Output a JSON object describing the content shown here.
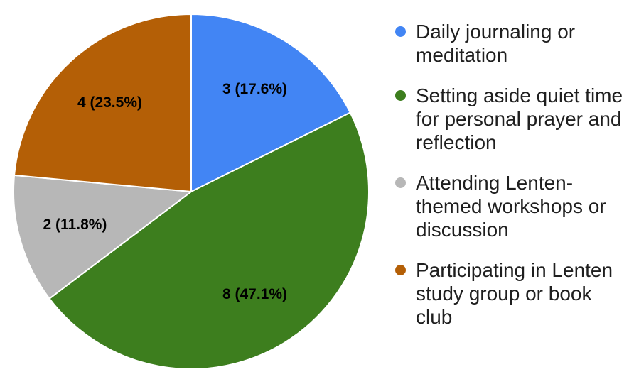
{
  "chart_data": {
    "type": "pie",
    "title": "",
    "total_responses": 17,
    "start_angle_deg_from_top": 0,
    "direction": "clockwise",
    "legend_position": "right",
    "grid": false,
    "background_color": "#ffffff",
    "slice_border_color": "#ffffff",
    "slices": [
      {
        "id": "daily-journaling",
        "legend_label": "Daily journaling or meditation",
        "value": 3,
        "percent": 17.6,
        "data_label": "3 (17.6%)",
        "color": "#4285F4"
      },
      {
        "id": "quiet-time",
        "legend_label": "Setting aside quiet time for personal prayer and reflection",
        "value": 8,
        "percent": 47.1,
        "data_label": "8 (47.1%)",
        "color": "#3D7E1E"
      },
      {
        "id": "workshops",
        "legend_label": "Attending Lenten-themed workshops or discussion",
        "value": 2,
        "percent": 11.8,
        "data_label": "2 (11.8%)",
        "color": "#B7B7B7"
      },
      {
        "id": "study-group",
        "legend_label": "Participating in Lenten study group or book club",
        "value": 4,
        "percent": 23.5,
        "data_label": "4 (23.5%)",
        "color": "#B45F06"
      }
    ]
  }
}
